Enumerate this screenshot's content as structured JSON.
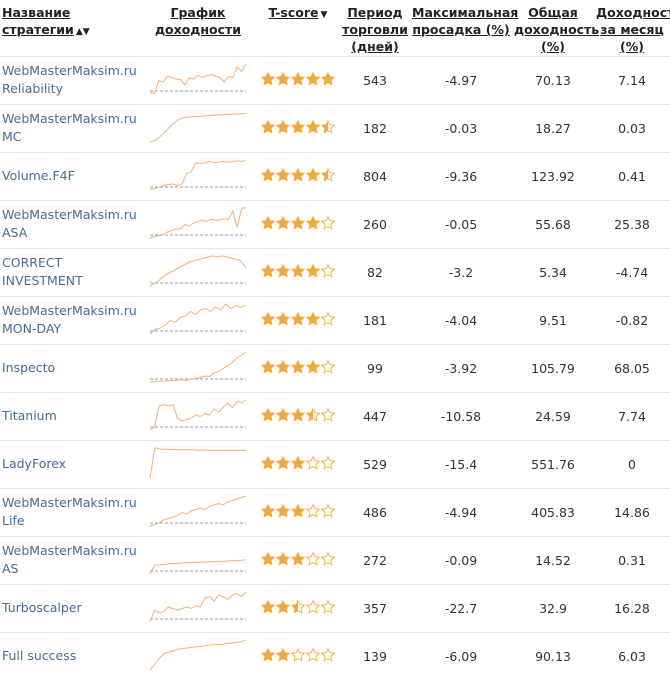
{
  "header": {
    "name": "Название стратегии",
    "chart": "График доходности",
    "tscore": "T-score",
    "period": "Период торговли (дней)",
    "drawdown": "Максимальная просадка (%)",
    "total": "Общая доходность (%)",
    "monthly": "Доходность за месяц (%)"
  },
  "colors": {
    "accent": "#f3a93b",
    "spark": "#f0b27a",
    "zero_line": "#777777",
    "name_link": "#4a6a8f",
    "star_empty": "#f3a93b"
  },
  "icons": {
    "sort": "sort-icon",
    "sort_down": "caret-down-icon",
    "rating": "star-icon"
  },
  "rows": [
    {
      "name": "WebMasterMaksim.ru Reliability",
      "score": 5,
      "period": "543",
      "drawdown": "-4.97",
      "total": "70.13",
      "monthly": "7.14",
      "spark": [
        0.05,
        0.02,
        0.45,
        0.4,
        0.6,
        0.55,
        0.5,
        0.48,
        0.3,
        0.55,
        0.5,
        0.62,
        0.55,
        0.6,
        0.65,
        0.6,
        0.55,
        0.4,
        0.58,
        0.55,
        0.9,
        0.75,
        1.0
      ],
      "has_zero": true
    },
    {
      "name": "WebMasterMaksim.ru MC",
      "score": 4.5,
      "period": "182",
      "drawdown": "-0.03",
      "total": "18.27",
      "monthly": "0.03",
      "spark": [
        0.0,
        0.05,
        0.15,
        0.3,
        0.45,
        0.6,
        0.72,
        0.8,
        0.82,
        0.84,
        0.85,
        0.86,
        0.87,
        0.88,
        0.9,
        0.9,
        0.91,
        0.92,
        0.93,
        0.94,
        0.94,
        0.95
      ],
      "has_zero": false
    },
    {
      "name": "Volume.F4F",
      "score": 4.5,
      "period": "804",
      "drawdown": "-9.36",
      "total": "123.92",
      "monthly": "0.41",
      "spark": [
        0.02,
        0.05,
        0.1,
        0.15,
        0.18,
        0.2,
        0.15,
        0.2,
        0.55,
        0.6,
        0.9,
        0.88,
        0.9,
        0.95,
        0.92,
        0.93,
        0.95,
        0.93,
        0.95,
        0.97,
        0.96,
        0.98
      ],
      "has_zero": true
    },
    {
      "name": "WebMasterMaksim.ru ASA",
      "score": 4,
      "period": "260",
      "drawdown": "-0.05",
      "total": "55.68",
      "monthly": "25.38",
      "spark": [
        0.0,
        0.05,
        0.08,
        0.12,
        0.2,
        0.25,
        0.3,
        0.3,
        0.45,
        0.4,
        0.5,
        0.55,
        0.6,
        0.55,
        0.62,
        0.6,
        0.6,
        0.65,
        0.62,
        0.9,
        0.35,
        1.0,
        1.0
      ],
      "has_zero": true
    },
    {
      "name": "CORRECT INVESTMENT",
      "score": 4,
      "period": "82",
      "drawdown": "-3.2",
      "total": "5.34",
      "monthly": "-4.74",
      "spark": [
        0.0,
        0.1,
        0.25,
        0.4,
        0.5,
        0.6,
        0.7,
        0.8,
        0.85,
        0.9,
        0.95,
        1.0,
        0.98,
        1.0,
        0.95,
        0.9,
        0.85,
        0.6
      ],
      "has_zero": true
    },
    {
      "name": "WebMasterMaksim.ru MON-DAY",
      "score": 4,
      "period": "181",
      "drawdown": "-4.04",
      "total": "9.51",
      "monthly": "-0.82",
      "spark": [
        0.0,
        0.15,
        0.2,
        0.3,
        0.45,
        0.4,
        0.55,
        0.6,
        0.75,
        0.65,
        0.8,
        0.85,
        0.75,
        0.9,
        0.8,
        1.0,
        0.85,
        0.95,
        0.9,
        0.95
      ],
      "has_zero": true
    },
    {
      "name": "Inspecto",
      "score": 4,
      "period": "99",
      "drawdown": "-3.92",
      "total": "105.79",
      "monthly": "68.05",
      "spark": [
        0.0,
        0.01,
        0.02,
        0.03,
        0.04,
        0.05,
        0.06,
        0.08,
        0.05,
        0.1,
        0.12,
        0.15,
        0.2,
        0.18,
        0.3,
        0.35,
        0.45,
        0.55,
        0.65,
        0.8,
        0.9,
        1.0
      ],
      "has_zero": true
    },
    {
      "name": "Titanium",
      "score": 3.5,
      "period": "447",
      "drawdown": "-10.58",
      "total": "24.59",
      "monthly": "7.74",
      "spark": [
        0.0,
        0.1,
        0.8,
        0.85,
        0.8,
        0.85,
        0.4,
        0.3,
        0.35,
        0.4,
        0.5,
        0.45,
        0.55,
        0.5,
        0.7,
        0.6,
        0.75,
        0.9,
        0.75,
        0.95,
        0.9,
        1.0
      ],
      "has_zero": true
    },
    {
      "name": "LadyForex",
      "score": 3,
      "period": "529",
      "drawdown": "-15.4",
      "total": "551.76",
      "monthly": "0",
      "spark": [
        0.0,
        1.0,
        0.97,
        0.96,
        0.96,
        0.95,
        0.95,
        0.94,
        0.94,
        0.94,
        0.93,
        0.93,
        0.93,
        0.92,
        0.92,
        0.92,
        0.92,
        0.92,
        0.92,
        0.92,
        0.92
      ],
      "has_zero": false
    },
    {
      "name": "WebMasterMaksim.ru Life",
      "score": 3,
      "period": "486",
      "drawdown": "-4.94",
      "total": "405.83",
      "monthly": "14.86",
      "spark": [
        0.0,
        0.05,
        0.1,
        0.2,
        0.25,
        0.3,
        0.35,
        0.45,
        0.4,
        0.5,
        0.55,
        0.6,
        0.55,
        0.65,
        0.7,
        0.75,
        0.7,
        0.8,
        0.85,
        0.9,
        0.95,
        1.0
      ],
      "has_zero": true
    },
    {
      "name": "WebMasterMaksim.ru AS",
      "score": 3,
      "period": "272",
      "drawdown": "-0.09",
      "total": "14.52",
      "monthly": "0.31",
      "spark": [
        0.0,
        0.3,
        0.3,
        0.32,
        0.34,
        0.35,
        0.36,
        0.37,
        0.38,
        0.38,
        0.39,
        0.4,
        0.4,
        0.41,
        0.41,
        0.42,
        0.43,
        0.44,
        0.45,
        0.46,
        0.47
      ],
      "has_zero": true
    },
    {
      "name": "Turboscalper",
      "score": 2.5,
      "period": "357",
      "drawdown": "-22.7",
      "total": "32.9",
      "monthly": "16.28",
      "spark": [
        0.0,
        0.4,
        0.3,
        0.35,
        0.5,
        0.45,
        0.4,
        0.45,
        0.5,
        0.45,
        0.55,
        0.5,
        0.8,
        0.85,
        0.7,
        0.9,
        0.85,
        0.75,
        0.9,
        0.95,
        0.85,
        1.0
      ],
      "has_zero": true
    },
    {
      "name": "Full success",
      "score": 2,
      "period": "139",
      "drawdown": "-6.09",
      "total": "90.13",
      "monthly": "6.03",
      "spark": [
        0.0,
        0.2,
        0.4,
        0.55,
        0.6,
        0.65,
        0.7,
        0.72,
        0.74,
        0.76,
        0.78,
        0.8,
        0.82,
        0.84,
        0.85,
        0.86,
        0.88,
        0.9,
        0.92,
        0.95,
        1.0
      ],
      "has_zero": false
    }
  ]
}
